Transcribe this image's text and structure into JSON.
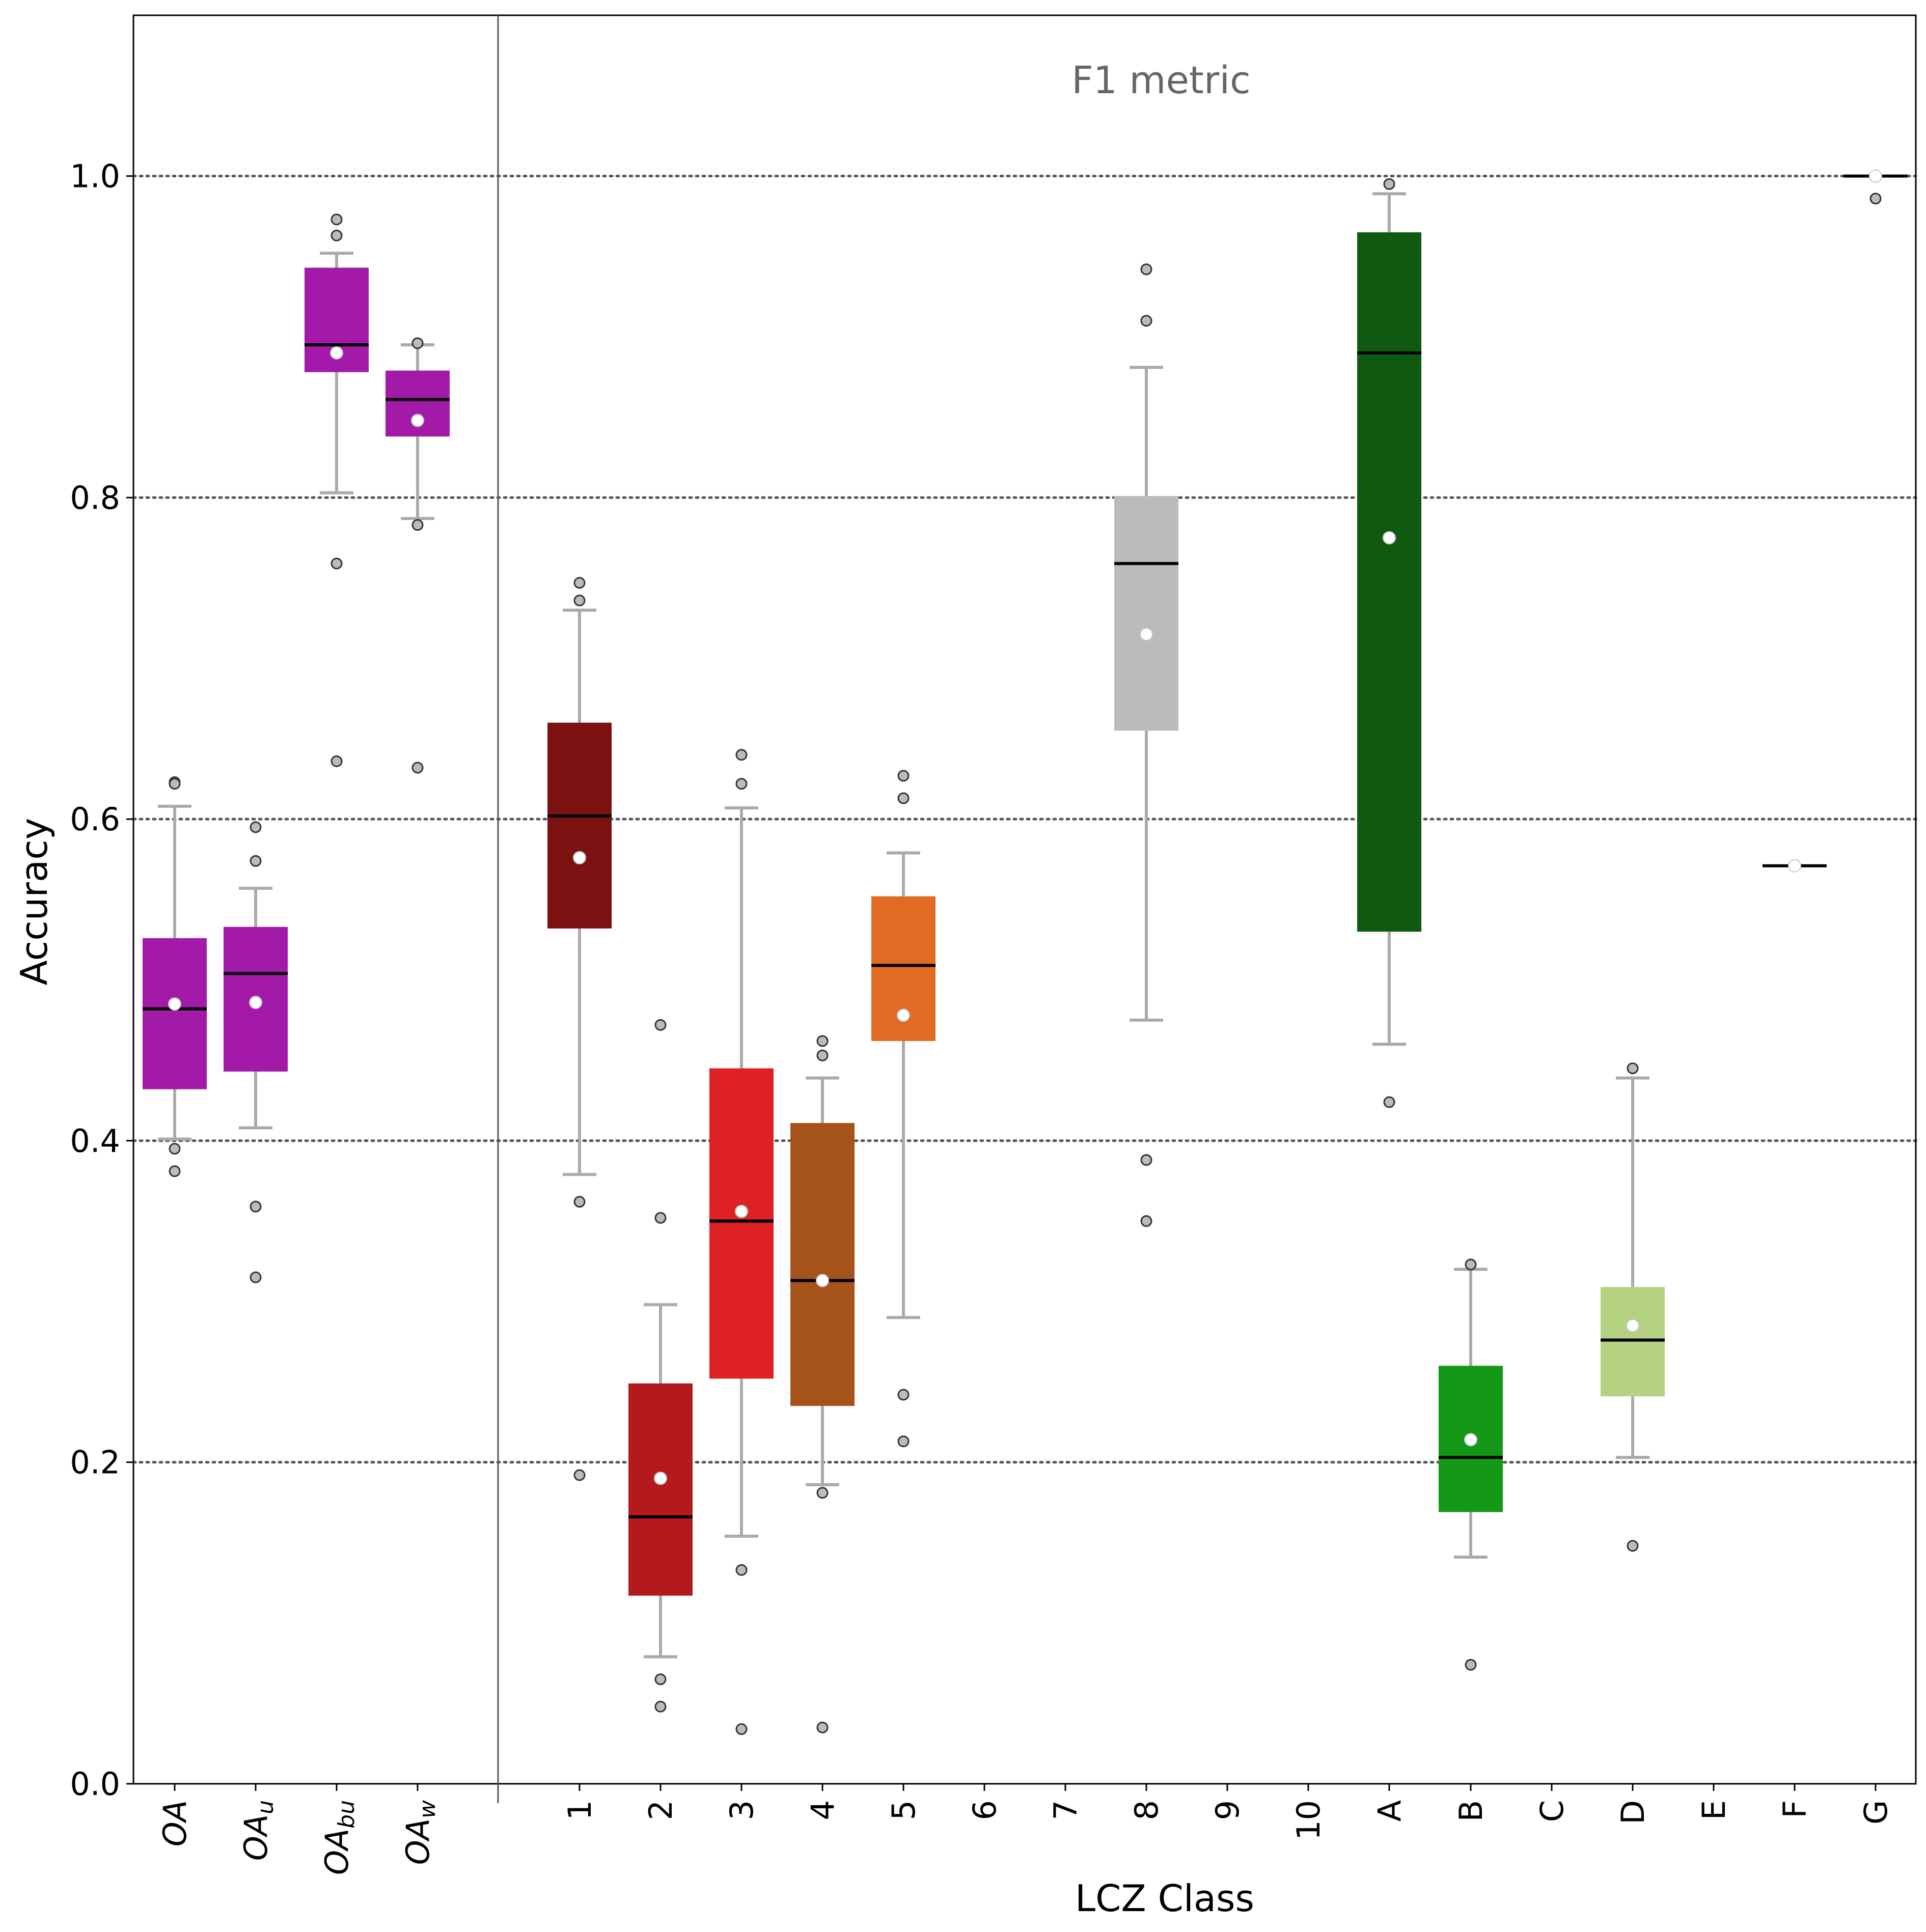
{
  "chart_data": {
    "type": "box",
    "annotation": "F1 metric",
    "xlabel": "LCZ Class",
    "ylabel": "Accuracy",
    "ylim": [
      0.0,
      1.1
    ],
    "yticks": [
      "0.0",
      "0.2",
      "0.4",
      "0.6",
      "0.8",
      "1.0"
    ],
    "grid": "horizontal dotted at 0.2, 0.4, 0.6, 0.8, 1.0",
    "divider_after_category": "OA_w",
    "categories": [
      {
        "label": "OA",
        "sub": "",
        "color": "#a31aa8"
      },
      {
        "label": "OA",
        "sub": "u",
        "color": "#a31aa8"
      },
      {
        "label": "OA",
        "sub": "bu",
        "color": "#a31aa8"
      },
      {
        "label": "OA",
        "sub": "w",
        "color": "#a31aa8"
      },
      {
        "label": "1",
        "sub": "",
        "color": "#7b1111"
      },
      {
        "label": "2",
        "sub": "",
        "color": "#b41a1c"
      },
      {
        "label": "3",
        "sub": "",
        "color": "#dd2124"
      },
      {
        "label": "4",
        "sub": "",
        "color": "#a5521b"
      },
      {
        "label": "5",
        "sub": "",
        "color": "#df6c22"
      },
      {
        "label": "6",
        "sub": "",
        "color": ""
      },
      {
        "label": "7",
        "sub": "",
        "color": ""
      },
      {
        "label": "8",
        "sub": "",
        "color": "#bbbbbb"
      },
      {
        "label": "9",
        "sub": "",
        "color": ""
      },
      {
        "label": "10",
        "sub": "",
        "color": ""
      },
      {
        "label": "A",
        "sub": "",
        "color": "#0f5a10"
      },
      {
        "label": "B",
        "sub": "",
        "color": "#149817"
      },
      {
        "label": "C",
        "sub": "",
        "color": ""
      },
      {
        "label": "D",
        "sub": "",
        "color": "#b5d283"
      },
      {
        "label": "E",
        "sub": "",
        "color": ""
      },
      {
        "label": "F",
        "sub": "",
        "color": "#ffffff"
      },
      {
        "label": "G",
        "sub": "",
        "color": "#ffffff"
      }
    ],
    "boxes": [
      {
        "category": "OA",
        "q1": 0.432,
        "median": 0.482,
        "q3": 0.526,
        "mean": 0.485,
        "whisker_low": 0.401,
        "whisker_high": 0.608,
        "outliers": [
          0.623,
          0.622,
          0.395,
          0.381
        ]
      },
      {
        "category": "OA_u",
        "q1": 0.443,
        "median": 0.504,
        "q3": 0.533,
        "mean": 0.486,
        "whisker_low": 0.408,
        "whisker_high": 0.557,
        "outliers": [
          0.595,
          0.574,
          0.359,
          0.315
        ]
      },
      {
        "category": "OA_bu",
        "q1": 0.878,
        "median": 0.895,
        "q3": 0.943,
        "mean": 0.89,
        "whisker_low": 0.803,
        "whisker_high": 0.952,
        "outliers": [
          0.973,
          0.963,
          0.759,
          0.636
        ]
      },
      {
        "category": "OA_w",
        "q1": 0.838,
        "median": 0.861,
        "q3": 0.879,
        "mean": 0.848,
        "whisker_low": 0.787,
        "whisker_high": 0.895,
        "outliers": [
          0.896,
          0.783,
          0.632
        ]
      },
      {
        "category": "1",
        "q1": 0.532,
        "median": 0.602,
        "q3": 0.66,
        "mean": 0.576,
        "whisker_low": 0.379,
        "whisker_high": 0.73,
        "outliers": [
          0.747,
          0.736,
          0.362,
          0.192
        ]
      },
      {
        "category": "2",
        "q1": 0.117,
        "median": 0.166,
        "q3": 0.249,
        "mean": 0.19,
        "whisker_low": 0.079,
        "whisker_high": 0.298,
        "outliers": [
          0.472,
          0.352,
          0.065,
          0.048
        ]
      },
      {
        "category": "3",
        "q1": 0.252,
        "median": 0.35,
        "q3": 0.445,
        "mean": 0.356,
        "whisker_low": 0.154,
        "whisker_high": 0.607,
        "outliers": [
          0.64,
          0.622,
          0.133,
          0.034
        ]
      },
      {
        "category": "4",
        "q1": 0.235,
        "median": 0.313,
        "q3": 0.411,
        "mean": 0.313,
        "whisker_low": 0.186,
        "whisker_high": 0.439,
        "outliers": [
          0.462,
          0.453,
          0.181,
          0.035
        ]
      },
      {
        "category": "5",
        "q1": 0.462,
        "median": 0.509,
        "q3": 0.552,
        "mean": 0.478,
        "whisker_low": 0.29,
        "whisker_high": 0.579,
        "outliers": [
          0.627,
          0.613,
          0.242,
          0.213
        ]
      },
      {
        "category": "8",
        "q1": 0.655,
        "median": 0.759,
        "q3": 0.801,
        "mean": 0.715,
        "whisker_low": 0.475,
        "whisker_high": 0.881,
        "outliers": [
          0.942,
          0.91,
          0.388,
          0.35
        ]
      },
      {
        "category": "A",
        "q1": 0.53,
        "median": 0.89,
        "q3": 0.965,
        "mean": 0.775,
        "whisker_low": 0.46,
        "whisker_high": 0.989,
        "outliers": [
          0.995,
          0.424
        ]
      },
      {
        "category": "B",
        "q1": 0.169,
        "median": 0.203,
        "q3": 0.26,
        "mean": 0.214,
        "whisker_low": 0.141,
        "whisker_high": 0.32,
        "outliers": [
          0.323,
          0.074
        ]
      },
      {
        "category": "D",
        "q1": 0.241,
        "median": 0.276,
        "q3": 0.309,
        "mean": 0.285,
        "whisker_low": 0.203,
        "whisker_high": 0.439,
        "outliers": [
          0.445,
          0.148
        ]
      },
      {
        "category": "F",
        "q1": 0.571,
        "median": 0.571,
        "q3": 0.571,
        "mean": 0.571,
        "whisker_low": 0.571,
        "whisker_high": 0.571,
        "outliers": []
      },
      {
        "category": "G",
        "q1": 1.0,
        "median": 1.0,
        "q3": 1.0,
        "mean": 1.0,
        "whisker_low": 1.0,
        "whisker_high": 1.0,
        "outliers": [
          0.986
        ]
      }
    ]
  }
}
